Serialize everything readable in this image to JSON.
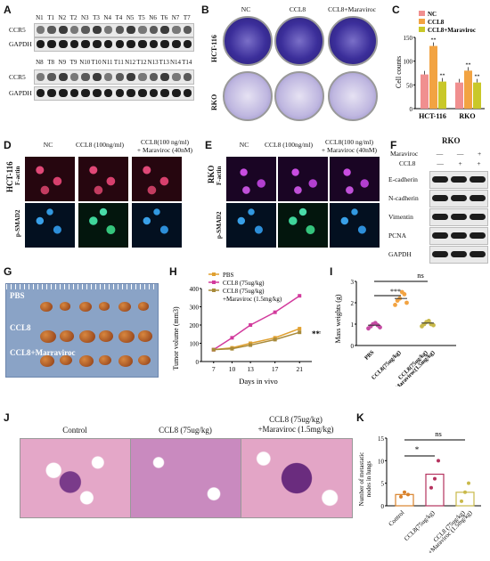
{
  "panels": {
    "A": {
      "letter": "A",
      "row1_lanes": [
        "N1",
        "T1",
        "N2",
        "T2",
        "N3",
        "T3",
        "N4",
        "T4",
        "N5",
        "T5",
        "N6",
        "T6",
        "N7",
        "T7"
      ],
      "row2_lanes": [
        "N8",
        "T8",
        "N9",
        "T9",
        "N10",
        "T10",
        "N11",
        "T11",
        "N12",
        "T12",
        "N13",
        "T13",
        "N14",
        "T14"
      ],
      "labels": [
        "CCR5",
        "GAPDH"
      ]
    },
    "B": {
      "letter": "B",
      "columns": [
        "NC",
        "CCL8",
        "CCL8+Maraviroc"
      ],
      "rows": [
        "HCT-116",
        "RKO"
      ]
    },
    "C": {
      "letter": "C",
      "legend": [
        "NC",
        "CCL8",
        "CCL8+Maraviroc"
      ],
      "ylabel": "Cell counts",
      "groups": [
        "HCT-116",
        "RKO"
      ],
      "yticks": [
        "0",
        "50",
        "100",
        "150"
      ],
      "sig": [
        "**",
        "**",
        "**",
        "**"
      ]
    },
    "D": {
      "letter": "D",
      "columns": [
        "NC",
        "CCL8 (100ng/ml)",
        "CCL8(100 ng/ml)",
        "+ Maraviroc (40nM)"
      ],
      "cell": "HCT-116",
      "rows": [
        "F-actin",
        "p-SMAD2"
      ]
    },
    "E": {
      "letter": "E",
      "columns": [
        "NC",
        "CCL8 (100ng/ml)",
        "CCL8(100 ng/ml)",
        "+ Maraviroc (40nM)"
      ],
      "cell": "RKO",
      "rows": [
        "F-actin",
        "p-SMAD2"
      ]
    },
    "F": {
      "letter": "F",
      "title": "RKO",
      "treat": [
        "Maraviroc",
        "CCL8"
      ],
      "signs_mara": [
        "—",
        "—",
        "+"
      ],
      "signs_ccl8": [
        "—",
        "+",
        "+"
      ],
      "proteins": [
        "E-cadherin",
        "N-cadherin",
        "Vimentin",
        "PCNA",
        "GAPDH"
      ]
    },
    "G": {
      "letter": "G",
      "groups": [
        "PBS",
        "CCL8",
        "CCL8+Marraviroc"
      ]
    },
    "H": {
      "letter": "H",
      "ylabel": "Tumor volume (mm3)",
      "xlabel": "Days in vivo",
      "legend": [
        "PBS",
        "CCL8 (75ug/kg)",
        "CCL8 (75ug/kg)",
        "+Maraviroc (1.5mg/kg)"
      ],
      "sig": "***"
    },
    "I": {
      "letter": "I",
      "ylabel": "Mass weights (g)",
      "yticks": [
        "0",
        "1",
        "2",
        "3"
      ],
      "categories": [
        "PBS",
        "CCL8(75ug/kg)",
        "CCL8(75ug/kg)",
        "+Maraviroc(1.5mg/kg)"
      ],
      "sig_top": "ns",
      "sig_mid": "***"
    },
    "J": {
      "letter": "J",
      "titles": [
        "Control",
        "CCL8 (75ug/kg)",
        "CCL8 (75ug/kg)",
        "+Maraviroc (1.5mg/kg)"
      ]
    },
    "K": {
      "letter": "K",
      "ylabel": [
        "Number of metastatic",
        "nodes in lungs"
      ],
      "yticks": [
        "0",
        "5",
        "10",
        "15"
      ],
      "categories": [
        "Control",
        "CCL8(75ug/kg)",
        "CCL8 (75ug/kg)",
        "+Maraviroc (1.5mg/kg)"
      ],
      "sig_top": "ns",
      "sig_mid": "*"
    }
  },
  "colors": {
    "nc": "#f08f8f",
    "ccl8": "#f2a342",
    "mara": "#c9c829",
    "pbs_line": "#e0a030",
    "ccl8_line": "#d23a9c",
    "mara_line": "#a88a3a"
  },
  "chart_data": [
    {
      "type": "bar",
      "title": "",
      "ylabel": "Cell counts",
      "categories": [
        "HCT-116",
        "RKO"
      ],
      "series": [
        {
          "name": "NC",
          "values": [
            72,
            55
          ]
        },
        {
          "name": "CCL8",
          "values": [
            132,
            80
          ]
        },
        {
          "name": "CCL8+Maraviroc",
          "values": [
            57,
            55
          ]
        }
      ],
      "ylim": [
        0,
        150
      ]
    },
    {
      "type": "line",
      "xlabel": "Days in vivo",
      "ylabel": "Tumor volume (mm3)",
      "x": [
        7,
        10,
        13,
        17,
        21
      ],
      "series": [
        {
          "name": "PBS",
          "values": [
            65,
            75,
            100,
            130,
            180
          ]
        },
        {
          "name": "CCL8 (75ug/kg)",
          "values": [
            65,
            130,
            200,
            270,
            360
          ]
        },
        {
          "name": "CCL8 (75ug/kg) +Maraviroc (1.5mg/kg)",
          "values": [
            65,
            70,
            90,
            120,
            160
          ]
        }
      ],
      "yticks": [
        0,
        100,
        200,
        300,
        400
      ],
      "ylim": [
        0,
        400
      ]
    },
    {
      "type": "scatter",
      "ylabel": "Mass weights (g)",
      "categories": [
        "PBS",
        "CCL8(75ug/kg)",
        "CCL8(75ug/kg)+Maraviroc(1.5mg/kg)"
      ],
      "means": [
        0.95,
        2.2,
        1.05
      ],
      "points": [
        [
          0.8,
          0.9,
          1.0,
          1.05,
          0.95,
          0.85
        ],
        [
          1.9,
          2.1,
          2.2,
          2.5,
          2.4,
          2.0
        ],
        [
          0.9,
          1.0,
          1.1,
          1.15,
          1.0,
          0.95
        ]
      ],
      "ylim": [
        0,
        3
      ]
    },
    {
      "type": "bar",
      "ylabel": "Number of metastatic nodes in lungs",
      "categories": [
        "Control",
        "CCL8(75ug/kg)",
        "CCL8 (75ug/kg)+Maraviroc (1.5mg/kg)"
      ],
      "values": [
        2.5,
        7,
        3
      ],
      "points": [
        [
          2,
          3,
          2.5
        ],
        [
          4,
          6,
          10
        ],
        [
          1,
          3,
          5
        ]
      ],
      "ylim": [
        0,
        15
      ]
    }
  ]
}
